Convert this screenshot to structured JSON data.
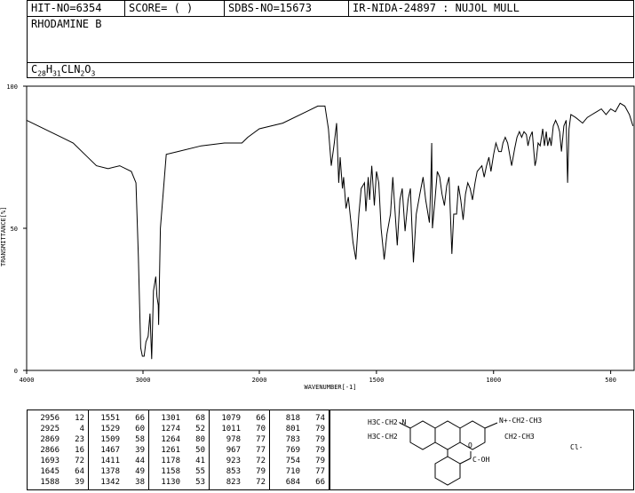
{
  "header": {
    "hit_no": "HIT-NO=6354",
    "score": "SCORE=  (   )",
    "sdbs_no": "SDBS-NO=15673",
    "ir_info": "IR-NIDA-24897 : NUJOL MULL",
    "compound_name": "RHODAMINE B",
    "formula_parts": [
      "C",
      "28",
      "H",
      "31",
      "CLN",
      "2",
      "O",
      "3"
    ]
  },
  "chart_data": {
    "type": "line",
    "xlabel": "WAVENUMBER[-1]",
    "ylabel": "TRANSMITTANCE[%]",
    "xlim": [
      4000,
      400
    ],
    "ylim": [
      0,
      100
    ],
    "x_ticks": [
      4000,
      3000,
      2000,
      1500,
      1000,
      500
    ],
    "y_ticks": [
      0,
      50,
      100
    ],
    "grid": false,
    "series": [
      {
        "points": [
          [
            4000,
            88
          ],
          [
            3900,
            86
          ],
          [
            3800,
            84
          ],
          [
            3700,
            82
          ],
          [
            3600,
            80
          ],
          [
            3500,
            76
          ],
          [
            3400,
            72
          ],
          [
            3300,
            71
          ],
          [
            3200,
            72
          ],
          [
            3100,
            70
          ],
          [
            3060,
            66
          ],
          [
            3040,
            40
          ],
          [
            3020,
            8
          ],
          [
            3005,
            5
          ],
          [
            2990,
            5
          ],
          [
            2975,
            10
          ],
          [
            2956,
            12
          ],
          [
            2940,
            20
          ],
          [
            2925,
            4
          ],
          [
            2910,
            28
          ],
          [
            2890,
            33
          ],
          [
            2880,
            26
          ],
          [
            2869,
            23
          ],
          [
            2866,
            16
          ],
          [
            2850,
            50
          ],
          [
            2800,
            76
          ],
          [
            2700,
            77
          ],
          [
            2500,
            79
          ],
          [
            2300,
            80
          ],
          [
            2150,
            80
          ],
          [
            2100,
            82
          ],
          [
            2000,
            85
          ],
          [
            1900,
            87
          ],
          [
            1800,
            91
          ],
          [
            1750,
            93
          ],
          [
            1720,
            93
          ],
          [
            1705,
            85
          ],
          [
            1693,
            72
          ],
          [
            1680,
            80
          ],
          [
            1670,
            87
          ],
          [
            1661,
            66
          ],
          [
            1655,
            75
          ],
          [
            1645,
            64
          ],
          [
            1640,
            68
          ],
          [
            1630,
            57
          ],
          [
            1620,
            61
          ],
          [
            1600,
            45
          ],
          [
            1588,
            39
          ],
          [
            1575,
            55
          ],
          [
            1565,
            64
          ],
          [
            1551,
            66
          ],
          [
            1545,
            56
          ],
          [
            1535,
            68
          ],
          [
            1529,
            60
          ],
          [
            1520,
            72
          ],
          [
            1509,
            58
          ],
          [
            1500,
            70
          ],
          [
            1490,
            66
          ],
          [
            1480,
            50
          ],
          [
            1467,
            39
          ],
          [
            1455,
            48
          ],
          [
            1440,
            55
          ],
          [
            1430,
            68
          ],
          [
            1411,
            44
          ],
          [
            1400,
            60
          ],
          [
            1390,
            64
          ],
          [
            1378,
            49
          ],
          [
            1365,
            60
          ],
          [
            1355,
            64
          ],
          [
            1342,
            38
          ],
          [
            1330,
            55
          ],
          [
            1315,
            62
          ],
          [
            1301,
            68
          ],
          [
            1290,
            60
          ],
          [
            1274,
            52
          ],
          [
            1268,
            66
          ],
          [
            1264,
            80
          ],
          [
            1261,
            50
          ],
          [
            1250,
            60
          ],
          [
            1240,
            70
          ],
          [
            1230,
            68
          ],
          [
            1220,
            62
          ],
          [
            1210,
            58
          ],
          [
            1200,
            65
          ],
          [
            1190,
            68
          ],
          [
            1178,
            41
          ],
          [
            1170,
            55
          ],
          [
            1158,
            55
          ],
          [
            1150,
            65
          ],
          [
            1140,
            60
          ],
          [
            1130,
            53
          ],
          [
            1120,
            62
          ],
          [
            1110,
            66
          ],
          [
            1100,
            64
          ],
          [
            1090,
            60
          ],
          [
            1079,
            66
          ],
          [
            1070,
            70
          ],
          [
            1050,
            72
          ],
          [
            1040,
            68
          ],
          [
            1030,
            72
          ],
          [
            1020,
            75
          ],
          [
            1011,
            70
          ],
          [
            1000,
            76
          ],
          [
            990,
            80
          ],
          [
            978,
            77
          ],
          [
            967,
            77
          ],
          [
            960,
            80
          ],
          [
            950,
            82
          ],
          [
            940,
            80
          ],
          [
            923,
            72
          ],
          [
            910,
            78
          ],
          [
            900,
            82
          ],
          [
            890,
            84
          ],
          [
            880,
            82
          ],
          [
            870,
            84
          ],
          [
            860,
            83
          ],
          [
            853,
            79
          ],
          [
            845,
            82
          ],
          [
            835,
            84
          ],
          [
            823,
            72
          ],
          [
            818,
            74
          ],
          [
            810,
            80
          ],
          [
            801,
            79
          ],
          [
            790,
            85
          ],
          [
            783,
            79
          ],
          [
            775,
            84
          ],
          [
            769,
            79
          ],
          [
            760,
            82
          ],
          [
            754,
            79
          ],
          [
            745,
            86
          ],
          [
            735,
            88
          ],
          [
            725,
            86
          ],
          [
            718,
            84
          ],
          [
            710,
            77
          ],
          [
            700,
            86
          ],
          [
            690,
            88
          ],
          [
            684,
            66
          ],
          [
            678,
            85
          ],
          [
            670,
            90
          ],
          [
            650,
            89
          ],
          [
            620,
            87
          ],
          [
            600,
            89
          ],
          [
            580,
            90
          ],
          [
            560,
            91
          ],
          [
            540,
            92
          ],
          [
            520,
            90
          ],
          [
            500,
            92
          ],
          [
            480,
            91
          ],
          [
            460,
            94
          ],
          [
            440,
            93
          ],
          [
            420,
            90
          ],
          [
            405,
            86
          ]
        ]
      }
    ]
  },
  "peak_table": {
    "columns": [
      [
        [
          "2956",
          "12"
        ],
        [
          "2925",
          "4"
        ],
        [
          "2869",
          "23"
        ],
        [
          "2866",
          "16"
        ],
        [
          "1693",
          "72"
        ],
        [
          "1645",
          "64"
        ],
        [
          "1588",
          "39"
        ]
      ],
      [
        [
          "1551",
          "66"
        ],
        [
          "1529",
          "60"
        ],
        [
          "1509",
          "58"
        ],
        [
          "1467",
          "39"
        ],
        [
          "1411",
          "44"
        ],
        [
          "1378",
          "49"
        ],
        [
          "1342",
          "38"
        ]
      ],
      [
        [
          "1301",
          "68"
        ],
        [
          "1274",
          "52"
        ],
        [
          "1264",
          "80"
        ],
        [
          "1261",
          "50"
        ],
        [
          "1178",
          "41"
        ],
        [
          "1158",
          "55"
        ],
        [
          "1130",
          "53"
        ]
      ],
      [
        [
          "1079",
          "66"
        ],
        [
          "1011",
          "70"
        ],
        [
          "978",
          "77"
        ],
        [
          "967",
          "77"
        ],
        [
          "923",
          "72"
        ],
        [
          "853",
          "79"
        ],
        [
          "823",
          "72"
        ]
      ],
      [
        [
          "818",
          "74"
        ],
        [
          "801",
          "79"
        ],
        [
          "783",
          "79"
        ],
        [
          "769",
          "79"
        ],
        [
          "754",
          "79"
        ],
        [
          "710",
          "77"
        ],
        [
          "684",
          "66"
        ]
      ]
    ]
  },
  "structure": {
    "left_group": "H3C-CH2-N",
    "left_lower": "H3C-CH2",
    "right_group": "N+-CH2-CH3",
    "right_lower": "CH2-CH3",
    "acid": "C-OH",
    "acid_o": "O",
    "counter_ion": "Cl-"
  }
}
